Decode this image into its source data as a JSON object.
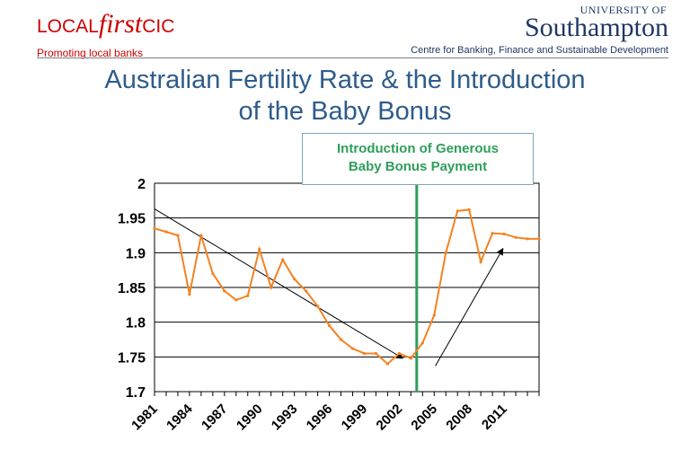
{
  "header": {
    "logo_left": {
      "part1": "LOCAL",
      "part2": "first",
      "part3": "CIC"
    },
    "tagline_left": "Promoting local banks",
    "logo_right": {
      "small": "UNIVERSITY OF",
      "big": "Southampton"
    },
    "tagline_right": "Centre for Banking, Finance and Sustainable Development"
  },
  "title": {
    "line1": "Australian Fertility Rate & the Introduction",
    "line2": "of the Baby Bonus"
  },
  "annotation": {
    "line1": "Introduction of Generous",
    "line2": "Baby Bonus Payment"
  },
  "colors": {
    "series": "#f58220",
    "marker": "#2e9e5b",
    "title": "#2e5c8a",
    "brand_red": "#cc0000",
    "brand_navy": "#1f3864"
  },
  "chart_data": {
    "type": "line",
    "title": "Australian Fertility Rate & the Introduction of the Baby Bonus",
    "xlabel": "",
    "ylabel": "",
    "ylim": [
      1.7,
      2.0
    ],
    "xlim": [
      1981,
      2014
    ],
    "yticks": [
      "2",
      "1.95",
      "1.9",
      "1.85",
      "1.8",
      "1.75",
      "1.7"
    ],
    "xtick_labels": [
      "1981",
      "1984",
      "1987",
      "1990",
      "1993",
      "1996",
      "1999",
      "2002",
      "2005",
      "2008",
      "2011"
    ],
    "grid": true,
    "series": [
      {
        "x": [
          1981,
          1982,
          1983,
          1984,
          1985,
          1986,
          1987,
          1988,
          1989,
          1990,
          1991,
          1992,
          1993,
          1994,
          1995,
          1996,
          1997,
          1998,
          1999,
          2000,
          2001,
          2002,
          2003,
          2004,
          2005,
          2006,
          2007,
          2008,
          2009,
          2010,
          2011,
          2012,
          2013,
          2014
        ],
        "y": [
          1.935,
          1.93,
          1.925,
          1.84,
          1.925,
          1.87,
          1.845,
          1.832,
          1.838,
          1.905,
          1.85,
          1.89,
          1.862,
          1.845,
          1.823,
          1.795,
          1.775,
          1.762,
          1.755,
          1.755,
          1.74,
          1.755,
          1.748,
          1.77,
          1.81,
          1.9,
          1.96,
          1.962,
          1.887,
          1.928,
          1.927,
          1.922,
          1.92,
          1.92
        ]
      }
    ],
    "annotations": [
      {
        "type": "vline",
        "x": 2003.5,
        "label": "Introduction of Generous Baby Bonus Payment"
      },
      {
        "type": "arrow",
        "from": [
          1981,
          1.963
        ],
        "to": [
          2002.3,
          1.748
        ]
      },
      {
        "type": "arrow",
        "from": [
          2005.1,
          1.737
        ],
        "to": [
          2010.9,
          1.906
        ]
      }
    ]
  }
}
